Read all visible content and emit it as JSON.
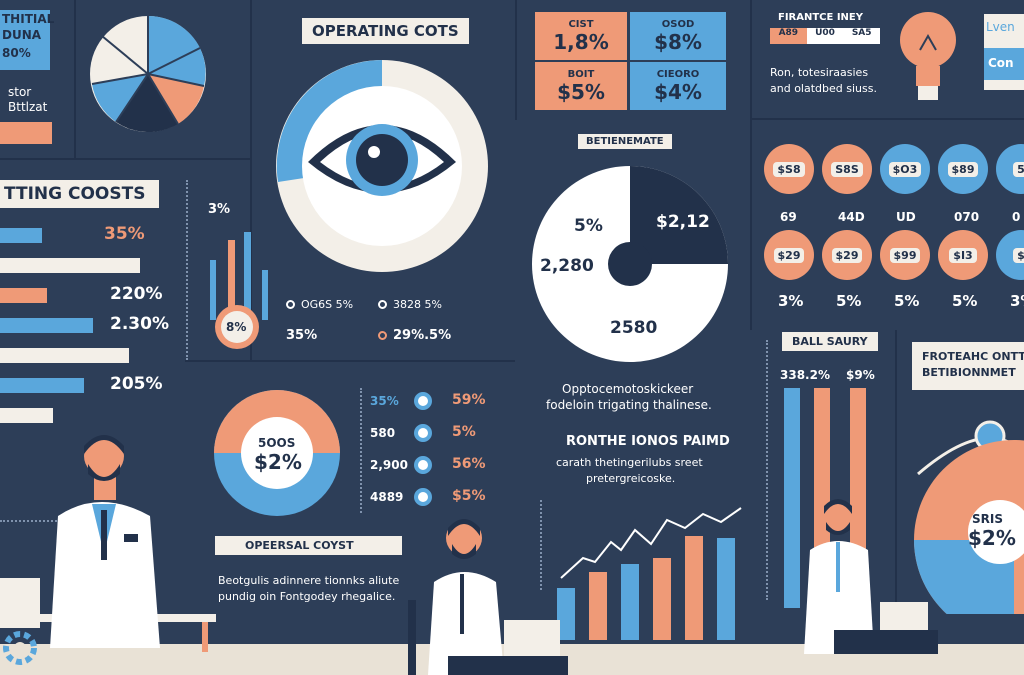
{
  "colors": {
    "background": "#2d3e58",
    "blue": "#5aa7dc",
    "peach": "#ef9a77",
    "cream": "#f3efe8",
    "navy": "#22314a"
  },
  "top_left": {
    "line1": "THITIAL",
    "line2": "DUNA",
    "line3": "80%",
    "note1": "stor",
    "note2": "Bttlzat"
  },
  "left_panel": {
    "title": "TTING COOSTS",
    "bars": [
      {
        "label": "35%",
        "fraction": 0.28
      },
      {
        "label": "",
        "fraction": 0.93
      },
      {
        "label": "220%",
        "fraction": 0.31
      },
      {
        "label": "2.30%",
        "fraction": 0.62
      },
      {
        "label": "",
        "fraction": 0.86
      },
      {
        "label": "205%",
        "fraction": 0.56
      },
      {
        "label": "",
        "fraction": 0.35
      }
    ]
  },
  "operating": {
    "title": "OPERATING COTS",
    "small_pct": "3%",
    "donut_label": "8%",
    "legend": [
      {
        "icon": "circle-icon",
        "text": "OG6S 5%"
      },
      {
        "icon": "circle-icon",
        "text": "3828 5%"
      },
      {
        "icon": "",
        "text": "35%"
      },
      {
        "icon": "",
        "text": "29%.5%"
      }
    ]
  },
  "middle_pie": {
    "header": "BETIENEMATE",
    "label_left": "5%",
    "label_right": "$2,12",
    "label_side": "2,280",
    "label_bottom": "2580",
    "caption1": "Opptocemotoskickeer",
    "caption2": "fodeloin trigating thalinese.",
    "subhead": "RONTHE IONOS PAIMD",
    "caption3": "carath thetingerilubs sreet",
    "caption4": "pretergreicoske."
  },
  "stat_boxes": [
    {
      "title": "CIST",
      "value": "1,8%"
    },
    {
      "title": "OSOD",
      "value": "$8%"
    },
    {
      "title": "BOIT",
      "value": "$5%"
    },
    {
      "title": "CIEORO",
      "value": "$4%"
    }
  ],
  "donut_small": {
    "label_top": "5OOS",
    "label_value": "$2%"
  },
  "dot_list": [
    {
      "left": "35%",
      "right": "59%"
    },
    {
      "left": "580",
      "right": "5%"
    },
    {
      "left": "2,900",
      "right": "56%"
    },
    {
      "left": "4889",
      "right": "$5%"
    }
  ],
  "operational": {
    "title": "OPEERSAL COYST",
    "text1": "Beotgulis adinnere tionnks aliute",
    "text2": "pundig oin Fontgodey rhegalice."
  },
  "finance": {
    "title": "FIRANTCE INEY",
    "row": [
      "A89",
      "U00",
      "SA5"
    ],
    "text1": "Ron, totesiraasies",
    "text2": "and olatdbed siuss."
  },
  "top_right": {
    "line1": "Lven",
    "line2": "Con"
  },
  "badges_row1": [
    "$S8",
    "S8S",
    "$O3",
    "$89",
    "5"
  ],
  "badges_row1_labels": [
    "69",
    "44D",
    "UD",
    "070",
    "0"
  ],
  "badges_row2": [
    "$29",
    "$29",
    "$99",
    "$I3",
    "$"
  ],
  "badges_row2_labels": [
    "3%",
    "5%",
    "5%",
    "5%",
    "3%"
  ],
  "ball": {
    "title": "BALL SAURY",
    "label_a": "338.2%",
    "label_b": "$9%"
  },
  "bottom_right": {
    "title1": "FROTEAHC ONTT",
    "title2": "BETIBIONNMET",
    "donut_label1": "SRIS",
    "donut_label2": "$2%"
  }
}
